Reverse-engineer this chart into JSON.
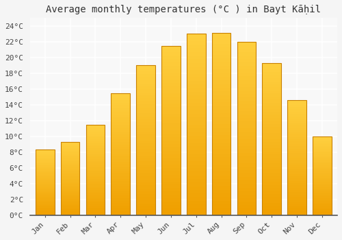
{
  "title": "Average monthly temperatures (°C ) in Bayt Kāḥil",
  "months": [
    "Jan",
    "Feb",
    "Mar",
    "Apr",
    "May",
    "Jun",
    "Jul",
    "Aug",
    "Sep",
    "Oct",
    "Nov",
    "Dec"
  ],
  "values": [
    8.3,
    9.3,
    11.5,
    15.5,
    19.0,
    21.5,
    23.0,
    23.1,
    22.0,
    19.3,
    14.6,
    10.0
  ],
  "bar_color_top": "#FFD040",
  "bar_color_bottom": "#F0A000",
  "bar_edge_color": "#C88000",
  "ylim": [
    0,
    25
  ],
  "ytick_step": 2,
  "background_color": "#f5f5f5",
  "plot_bg_color": "#f8f8f8",
  "grid_color": "#ffffff",
  "title_fontsize": 10,
  "tick_fontsize": 8,
  "font_family": "monospace"
}
